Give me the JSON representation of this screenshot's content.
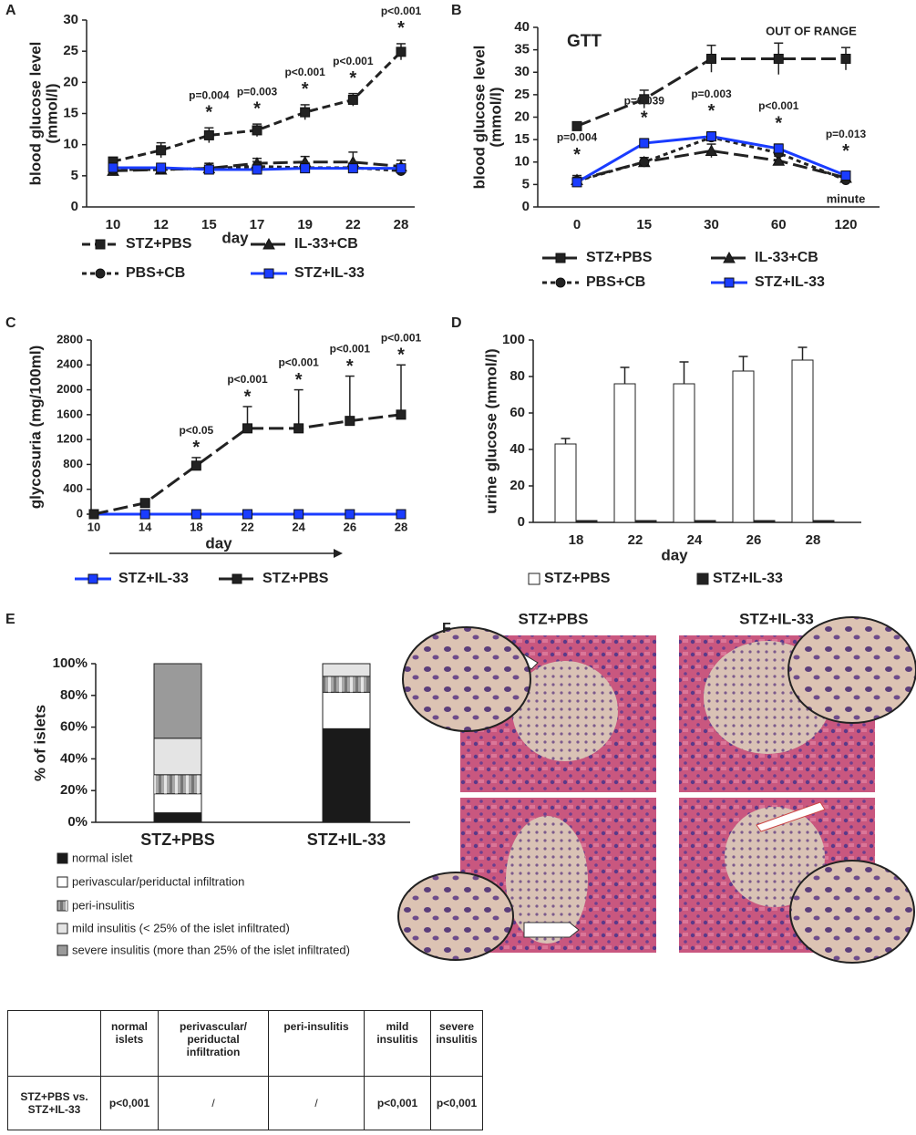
{
  "chart_data": [
    {
      "label": "A",
      "type": "line",
      "ylabel": [
        "blood glucose level",
        "(mmol/l)"
      ],
      "xlabel": "day",
      "categories": [
        "10",
        "12",
        "15",
        "17",
        "19",
        "22",
        "28"
      ],
      "ylim": [
        0,
        30
      ],
      "yticks": [
        0,
        5,
        10,
        15,
        20,
        25,
        30
      ],
      "error_bars": "both",
      "series": [
        {
          "name": "STZ+PBS",
          "color": "#222222",
          "marker": "square",
          "line_style": "dashed",
          "values": [
            7.3,
            9.1,
            11.5,
            12.3,
            15.2,
            17.2,
            24.9
          ],
          "errors": [
            0.5,
            1.2,
            1.2,
            1.0,
            1.2,
            1.0,
            1.3
          ]
        },
        {
          "name": "IL-33+CB",
          "color": "#222222",
          "marker": "triangle",
          "line_style": "long-dashed",
          "values": [
            5.8,
            6.0,
            6.2,
            7.0,
            7.2,
            7.2,
            6.5
          ],
          "errors": [
            0.6,
            0.8,
            0.8,
            0.8,
            0.9,
            1.6,
            1.0
          ]
        },
        {
          "name": "PBS+CB",
          "color": "#222222",
          "marker": "circle",
          "line_style": "short-dashed",
          "values": [
            6.0,
            6.0,
            6.2,
            6.5,
            6.3,
            6.3,
            5.8
          ],
          "errors": [
            0.5,
            0.8,
            0.8,
            0.8,
            0.8,
            0.8,
            0.8
          ]
        },
        {
          "name": "STZ+IL-33",
          "color": "#1a3cff",
          "marker": "square",
          "line_style": "solid",
          "values": [
            6.3,
            6.3,
            6.0,
            6.0,
            6.2,
            6.2,
            6.2
          ],
          "errors": [
            0.4,
            0.5,
            0.5,
            0.5,
            0.5,
            0.5,
            0.5
          ]
        }
      ],
      "p_values": [
        null,
        null,
        "p=0.004",
        "p=0.003",
        "p<0.001",
        "p<0.001",
        "p<0.001"
      ],
      "stars": [
        null,
        null,
        "*",
        "*",
        "*",
        "*",
        "*"
      ]
    },
    {
      "label": "B",
      "type": "line",
      "title": "GTT",
      "note": "OUT OF RANGE",
      "ylabel": [
        "blood glucose level",
        "(mmol/l)"
      ],
      "xlabel": "minute",
      "categories": [
        "0",
        "15",
        "30",
        "60",
        "120"
      ],
      "ylim": [
        0,
        40
      ],
      "yticks": [
        0,
        5,
        10,
        15,
        20,
        25,
        30,
        35,
        40
      ],
      "error_bars": "both",
      "series": [
        {
          "name": "STZ+PBS",
          "color": "#222222",
          "marker": "square",
          "line_style": "long-dashed",
          "values": [
            18,
            24,
            33,
            33,
            33
          ],
          "errors": [
            0.8,
            2,
            3,
            3.5,
            2.5
          ]
        },
        {
          "name": "IL-33+CB",
          "color": "#222222",
          "marker": "triangle",
          "line_style": "long-dashed",
          "values": [
            6,
            10,
            12.5,
            10.3,
            6.5
          ],
          "errors": [
            1,
            1,
            1.5,
            1,
            0.8
          ]
        },
        {
          "name": "PBS+CB",
          "color": "#222222",
          "marker": "circle",
          "line_style": "short-dashed",
          "values": [
            5.8,
            10,
            15.5,
            12,
            6
          ],
          "errors": [
            0.8,
            1,
            1,
            1,
            0.8
          ]
        },
        {
          "name": "STZ+IL-33",
          "color": "#1a3cff",
          "marker": "square",
          "line_style": "solid",
          "values": [
            5.5,
            14.2,
            15.7,
            13,
            7
          ],
          "errors": [
            0.8,
            1,
            1,
            1,
            0.8
          ]
        }
      ],
      "p_values": [
        "p=0.004",
        "p=0.039",
        "p=0.003",
        "p<0.001",
        "p=0.013"
      ],
      "stars": [
        "*",
        "*",
        "*",
        "*",
        "*"
      ]
    },
    {
      "label": "C",
      "type": "line",
      "ylabel": [
        "glycosuria (mg/100ml)"
      ],
      "xlabel": "day",
      "categories": [
        "10",
        "14",
        "18",
        "22",
        "24",
        "26",
        "28"
      ],
      "ylim": [
        0,
        2800
      ],
      "yticks": [
        0,
        400,
        800,
        1200,
        1600,
        2000,
        2400,
        2800
      ],
      "error_bars": "upper",
      "series": [
        {
          "name": "STZ+IL-33",
          "color": "#1a3cff",
          "marker": "square",
          "line_style": "solid",
          "values": [
            0,
            0,
            0,
            0,
            0,
            0,
            0
          ]
        },
        {
          "name": "STZ+PBS",
          "color": "#222222",
          "marker": "square",
          "line_style": "long-dashed",
          "values": [
            0,
            180,
            780,
            1380,
            1380,
            1500,
            1600
          ],
          "errors": [
            0,
            0,
            130,
            350,
            620,
            720,
            800
          ]
        }
      ],
      "p_values": [
        null,
        null,
        "p<0.05",
        "p<0.001",
        "p<0.001",
        "p<0.001",
        "p<0.001"
      ],
      "stars": [
        null,
        null,
        "*",
        "*",
        "*",
        "*",
        "*"
      ]
    },
    {
      "label": "D",
      "type": "bar",
      "ylabel": [
        "urine glucose (mmol/l)"
      ],
      "xlabel": "day",
      "categories": [
        "18",
        "22",
        "24",
        "26",
        "28"
      ],
      "ylim": [
        0,
        100
      ],
      "yticks": [
        0,
        20,
        40,
        60,
        80,
        100
      ],
      "error_bars": "upper",
      "series": [
        {
          "name": "STZ+PBS",
          "color": "#ffffff",
          "values": [
            43,
            76,
            76,
            83,
            89
          ],
          "errors": [
            3,
            9,
            12,
            8,
            7
          ]
        },
        {
          "name": "STZ+IL-33",
          "color": "#222222",
          "values": [
            1,
            1,
            1,
            1,
            1
          ]
        }
      ]
    },
    {
      "label": "E",
      "type": "stacked_bar",
      "ylabel": [
        "% of islets"
      ],
      "categories": [
        "STZ+PBS",
        "STZ+IL-33"
      ],
      "ylim": [
        0,
        100
      ],
      "yticks": [
        {
          "value": 0,
          "label": "0%"
        },
        {
          "value": 20,
          "label": "20%"
        },
        {
          "value": 40,
          "label": "40%"
        },
        {
          "value": 60,
          "label": "60%"
        },
        {
          "value": 80,
          "label": "80%"
        },
        {
          "value": 100,
          "label": "100%"
        }
      ],
      "series": [
        {
          "name": "normal islet",
          "color": "#1a1a1a",
          "values": [
            6,
            59
          ]
        },
        {
          "name": "perivascular/periductal infiltration",
          "color": "#ffffff",
          "values": [
            12,
            23
          ]
        },
        {
          "name": "peri-insulitis",
          "color": "#a8a8a8",
          "fill_style": "striped",
          "values": [
            12,
            10
          ]
        },
        {
          "name": "mild insulitis (< 25% of the islet infiltrated)",
          "color": "#e4e4e4",
          "values": [
            23,
            8
          ]
        },
        {
          "name": "severe insulitis (more than 25% of the islet infiltrated)",
          "color": "#9a9a9a",
          "values": [
            47,
            0
          ]
        }
      ]
    }
  ],
  "panel_f": {
    "label": "F",
    "titles": [
      "STZ+PBS",
      "STZ+IL-33"
    ]
  },
  "table": {
    "header": [
      null,
      "normal islets",
      "perivascular/ periductal infiltration",
      "peri-insulitis",
      "mild insulitis",
      "severe insulitis"
    ],
    "rows": [
      [
        "STZ+PBS vs. STZ+IL-33",
        "p<0,001",
        "/",
        "/",
        "p<0,001",
        "p<0,001"
      ]
    ]
  }
}
